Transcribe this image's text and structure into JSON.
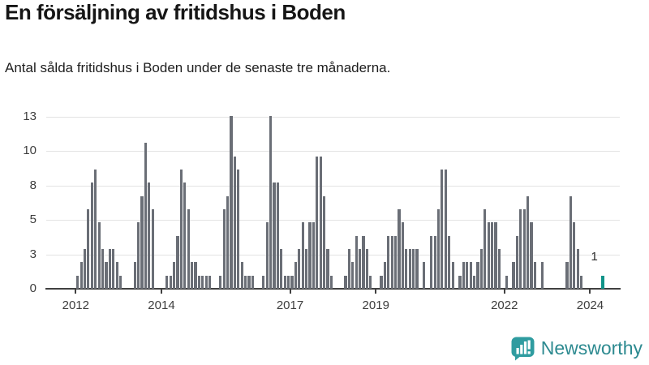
{
  "title": "En försäljning av fritidshus i Boden",
  "subtitle": "Antal sålda fritidshus i Boden under de senaste tre månaderna.",
  "annotation": {
    "label": "1"
  },
  "logo": {
    "text": "Newsworthy",
    "icon": "newsworthy-speech-bubble-chart-icon"
  },
  "colors": {
    "bar": "#6a6e76",
    "highlight": "#119489",
    "grid": "#e3e3e3",
    "axis": "#404040",
    "tick_text": "#3d3d3d",
    "title_text": "#161616",
    "logo_teal": "#2d8a90",
    "logo_icon_teal": "#2f9ca0"
  },
  "chart_data": {
    "type": "bar",
    "title": "En försäljning av fritidshus i Boden",
    "subtitle": "Antal sålda fritidshus i Boden under de senaste tre månaderna.",
    "xlabel": "",
    "ylabel": "",
    "x_unit": "month",
    "x_range": [
      "2012-01",
      "2024-04"
    ],
    "ylim": [
      0,
      13
    ],
    "grid": true,
    "legend_position": "none",
    "y_ticks": [
      {
        "value": 0,
        "label": "0"
      },
      {
        "value": 2.6,
        "label": "3"
      },
      {
        "value": 5.2,
        "label": "5"
      },
      {
        "value": 7.8,
        "label": "8"
      },
      {
        "value": 10.4,
        "label": "10"
      },
      {
        "value": 13,
        "label": "13"
      }
    ],
    "x_ticks": [
      {
        "label": "2012",
        "month_index": 0
      },
      {
        "label": "2014",
        "month_index": 24
      },
      {
        "label": "2017",
        "month_index": 60
      },
      {
        "label": "2019",
        "month_index": 84
      },
      {
        "label": "2022",
        "month_index": 120
      },
      {
        "label": "2024",
        "month_index": 144
      }
    ],
    "series": [
      {
        "name": "Antal sålda fritidshus, rullande tre månader",
        "years": [
          {
            "year": 2012,
            "monthly": [
              1,
              2,
              3,
              6,
              8,
              9,
              5,
              3,
              2,
              3,
              3,
              2
            ]
          },
          {
            "year": 2013,
            "monthly": [
              1,
              0,
              0,
              0,
              2,
              5,
              7,
              11,
              8,
              6,
              0,
              0
            ]
          },
          {
            "year": 2014,
            "monthly": [
              0,
              1,
              1,
              2,
              4,
              9,
              8,
              6,
              2,
              2,
              1,
              1
            ]
          },
          {
            "year": 2015,
            "monthly": [
              1,
              1,
              0,
              0,
              1,
              6,
              7,
              13,
              10,
              9,
              2,
              1
            ]
          },
          {
            "year": 2016,
            "monthly": [
              1,
              1,
              0,
              0,
              1,
              5,
              13,
              8,
              8,
              3,
              1,
              1
            ]
          },
          {
            "year": 2017,
            "monthly": [
              1,
              2,
              3,
              5,
              3,
              5,
              5,
              10,
              10,
              7,
              3,
              1
            ]
          },
          {
            "year": 2018,
            "monthly": [
              0,
              0,
              0,
              1,
              3,
              2,
              4,
              3,
              4,
              3,
              1,
              0
            ]
          },
          {
            "year": 2019,
            "monthly": [
              0,
              1,
              2,
              4,
              4,
              4,
              6,
              5,
              3,
              3,
              3,
              3
            ]
          },
          {
            "year": 2020,
            "monthly": [
              0,
              2,
              0,
              4,
              4,
              6,
              9,
              9,
              4,
              2,
              0,
              1
            ]
          },
          {
            "year": 2021,
            "monthly": [
              2,
              2,
              2,
              1,
              2,
              3,
              6,
              5,
              5,
              5,
              3,
              0
            ]
          },
          {
            "year": 2022,
            "monthly": [
              1,
              0,
              2,
              4,
              6,
              6,
              7,
              5,
              2,
              0,
              2,
              0
            ]
          },
          {
            "year": 2023,
            "monthly": [
              0,
              0,
              0,
              0,
              0,
              2,
              7,
              5,
              3,
              1,
              0,
              0
            ]
          },
          {
            "year": 2024,
            "monthly": [
              0,
              0,
              0,
              1
            ]
          }
        ]
      }
    ],
    "highlight": {
      "month": "2024-04",
      "value": 1,
      "label": "1",
      "color": "#119489"
    }
  }
}
